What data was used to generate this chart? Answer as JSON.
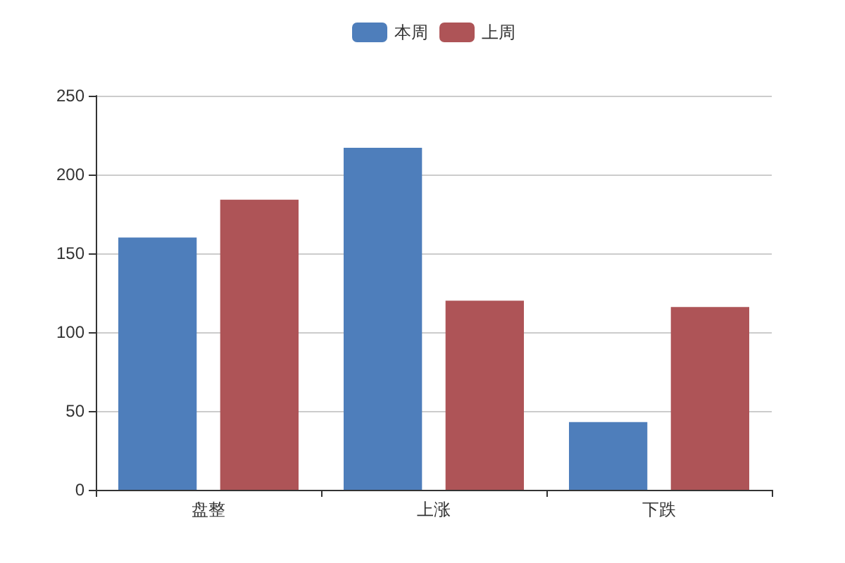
{
  "chart_data": {
    "type": "bar",
    "categories": [
      "盘整",
      "上涨",
      "下跌"
    ],
    "series": [
      {
        "name": "本周",
        "color": "#4e7ebb",
        "values": [
          160,
          217,
          43
        ]
      },
      {
        "name": "上周",
        "color": "#ae5457",
        "values": [
          184,
          120,
          116
        ]
      }
    ],
    "ylim": [
      0,
      250
    ],
    "yticks": [
      0,
      50,
      100,
      150,
      200,
      250
    ],
    "grid": "y",
    "legend": "top"
  }
}
